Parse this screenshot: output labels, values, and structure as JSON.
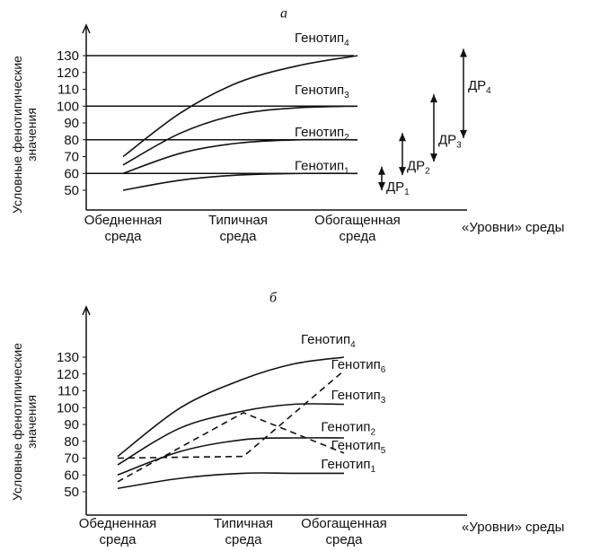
{
  "colors": {
    "ink": "#111111",
    "background": "#ffffff"
  },
  "chart_data": [
    {
      "type": "line",
      "panel_label": "а",
      "ylabel_line1": "Условные фенотипические",
      "ylabel_line2": "значения",
      "xlabel": "«Уровни» среды",
      "categories": [
        {
          "line1": "Обедненная",
          "line2": "среда"
        },
        {
          "line1": "Типичная",
          "line2": "среда"
        },
        {
          "line1": "Обогащенная",
          "line2": "среда"
        }
      ],
      "yticks": [
        50,
        60,
        70,
        80,
        90,
        100,
        110,
        120,
        130
      ],
      "ylim": [
        45,
        140
      ],
      "reference_lines": [
        60,
        80,
        100,
        130
      ],
      "series": [
        {
          "name": "Генотип",
          "index": "1",
          "x": [
            0,
            0.5,
            1,
            1.5,
            2
          ],
          "y": [
            50,
            56,
            59,
            60,
            60
          ],
          "dashed": false,
          "label_at": [
            2,
            62
          ]
        },
        {
          "name": "Генотип",
          "index": "2",
          "x": [
            0,
            0.5,
            1,
            1.5,
            2
          ],
          "y": [
            60,
            72,
            78,
            80,
            80
          ],
          "dashed": false,
          "label_at": [
            2,
            82
          ]
        },
        {
          "name": "Генотип",
          "index": "3",
          "x": [
            0,
            0.5,
            1,
            1.5,
            2
          ],
          "y": [
            65,
            84,
            95,
            99,
            100
          ],
          "dashed": false,
          "label_at": [
            2,
            107
          ]
        },
        {
          "name": "Генотип",
          "index": "4",
          "x": [
            0,
            0.5,
            1,
            1.5,
            2
          ],
          "y": [
            70,
            96,
            114,
            124,
            130
          ],
          "dashed": false,
          "label_at": [
            2,
            138
          ]
        }
      ],
      "ranges": [
        {
          "label": "ДР",
          "index": "1",
          "low": 50,
          "high": 64
        },
        {
          "label": "ДР",
          "index": "2",
          "low": 59,
          "high": 84
        },
        {
          "label": "ДР",
          "index": "3",
          "low": 67,
          "high": 107
        },
        {
          "label": "ДР",
          "index": "4",
          "low": 81,
          "high": 134
        }
      ]
    },
    {
      "type": "line",
      "panel_label": "б",
      "ylabel_line1": "Условные фенотипические",
      "ylabel_line2": "значения",
      "xlabel": "«Уровни» среды",
      "categories": [
        {
          "line1": "Обедненная",
          "line2": "среда"
        },
        {
          "line1": "Типичная",
          "line2": "среда"
        },
        {
          "line1": "Обогащенная",
          "line2": "среда"
        }
      ],
      "yticks": [
        50,
        60,
        70,
        80,
        90,
        100,
        110,
        120,
        130
      ],
      "ylim": [
        45,
        140
      ],
      "series": [
        {
          "name": "Генотип",
          "index": "1",
          "x": [
            0,
            0.5,
            1,
            1.5,
            2
          ],
          "y": [
            52,
            58,
            61,
            61,
            61
          ],
          "dashed": false,
          "label_at": [
            1.95,
            64
          ]
        },
        {
          "name": "Генотип",
          "index": "2",
          "x": [
            0,
            0.5,
            1,
            1.5,
            2
          ],
          "y": [
            60,
            74,
            81,
            82,
            82
          ],
          "dashed": false,
          "label_at": [
            1.95,
            86
          ]
        },
        {
          "name": "Генотип",
          "index": "3",
          "x": [
            0,
            0.5,
            1,
            1.5,
            2
          ],
          "y": [
            66,
            88,
            98,
            102,
            102
          ],
          "dashed": false,
          "label_at": [
            2.05,
            105
          ]
        },
        {
          "name": "Генотип",
          "index": "4",
          "x": [
            0,
            0.5,
            1,
            1.5,
            2
          ],
          "y": [
            71,
            100,
            117,
            126,
            130
          ],
          "dashed": false,
          "label_at": [
            1.75,
            138
          ]
        },
        {
          "name": "Генотип",
          "index": "5",
          "x": [
            0,
            1,
            2
          ],
          "y": [
            56,
            97,
            73
          ],
          "dashed": true,
          "label_at": [
            2.05,
            75
          ]
        },
        {
          "name": "Генотип",
          "index": "6",
          "x": [
            0,
            1,
            2
          ],
          "y": [
            70,
            71,
            122
          ],
          "dashed": true,
          "label_at": [
            2.05,
            123
          ]
        }
      ]
    }
  ]
}
